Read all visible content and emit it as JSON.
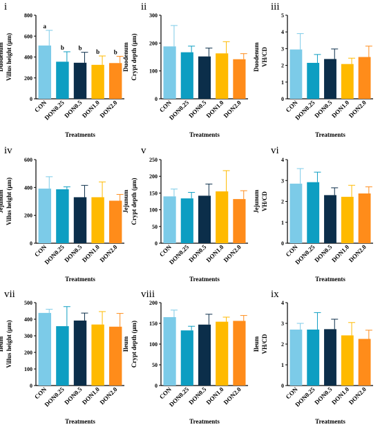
{
  "colors": [
    "#7ccbe8",
    "#0d9ec2",
    "#0b2e4a",
    "#ffba00",
    "#ff8c1a"
  ],
  "chart_data": [
    {
      "type": "bar",
      "panel": "i",
      "categories": [
        "CON",
        "DON0.25",
        "DON0.5",
        "DON1.0",
        "DON2.0"
      ],
      "values": [
        510,
        355,
        345,
        325,
        342
      ],
      "errors": [
        145,
        95,
        100,
        85,
        65
      ],
      "significance": [
        "a",
        "b",
        "b",
        "b",
        "b"
      ],
      "ylabel_lines": [
        "Duodenum",
        "Villus height (μm)"
      ],
      "xlabel": "Treatments",
      "ylim": [
        0,
        800
      ],
      "yticks": [
        "0",
        "200",
        "400",
        "600",
        "800"
      ]
    },
    {
      "type": "bar",
      "panel": "ii",
      "categories": [
        "CON",
        "DON0.25",
        "DON0.5",
        "DON1.0",
        "DON2.0"
      ],
      "values": [
        188,
        167,
        152,
        163,
        142
      ],
      "errors": [
        75,
        22,
        30,
        42,
        20
      ],
      "ylabel_lines": [
        "Duodenum",
        "Crypt depth (μm)"
      ],
      "xlabel": "Treatments",
      "ylim": [
        0,
        300
      ],
      "yticks": [
        "0",
        "100",
        "200",
        "300"
      ]
    },
    {
      "type": "bar",
      "panel": "iii",
      "categories": [
        "CON",
        "DON0.25",
        "DON0.5",
        "DON1.0",
        "DON2.0"
      ],
      "values": [
        2.95,
        2.15,
        2.38,
        2.08,
        2.5
      ],
      "errors": [
        0.95,
        0.5,
        0.6,
        0.35,
        0.65
      ],
      "ylabel_lines": [
        "Duodenum",
        "VH/CD"
      ],
      "xlabel": "Treatments",
      "ylim": [
        0,
        5
      ],
      "yticks": [
        "0",
        "1",
        "2",
        "3",
        "4",
        "5"
      ]
    },
    {
      "type": "bar",
      "panel": "iv",
      "categories": [
        "CON",
        "DON0.25",
        "DON0.5",
        "DON1.0",
        "DON2.0"
      ],
      "values": [
        392,
        387,
        330,
        330,
        305
      ],
      "errors": [
        85,
        18,
        85,
        110,
        45
      ],
      "ylabel_lines": [
        "Jejunum",
        "Villus height (μm)"
      ],
      "xlabel": "Treatments",
      "ylim": [
        0,
        600
      ],
      "yticks": [
        "0",
        "200",
        "400",
        "600"
      ]
    },
    {
      "type": "bar",
      "panel": "v",
      "categories": [
        "CON",
        "DON0.25",
        "DON0.5",
        "DON1.0",
        "DON2.0"
      ],
      "values": [
        140,
        134,
        142,
        155,
        132
      ],
      "errors": [
        22,
        18,
        35,
        62,
        25
      ],
      "ylabel_lines": [
        "Jejunum",
        "Crypt depth (μm)"
      ],
      "xlabel": "Treatments",
      "ylim": [
        0,
        250
      ],
      "yticks": [
        "0",
        "50",
        "100",
        "150",
        "200",
        "250"
      ]
    },
    {
      "type": "bar",
      "panel": "vi",
      "categories": [
        "CON",
        "DON0.25",
        "DON0.5",
        "DON1.0",
        "DON2.0"
      ],
      "values": [
        2.85,
        2.92,
        2.3,
        2.22,
        2.38
      ],
      "errors": [
        0.72,
        0.48,
        0.35,
        0.55,
        0.32
      ],
      "ylabel_lines": [
        "Jejunum",
        "VH/CD"
      ],
      "xlabel": "Treatments",
      "ylim": [
        0,
        4
      ],
      "yticks": [
        "0",
        "1",
        "2",
        "3",
        "4"
      ]
    },
    {
      "type": "bar",
      "panel": "vii",
      "categories": [
        "CON",
        "DON0.25",
        "DON0.5",
        "DON1.0",
        "DON2.0"
      ],
      "values": [
        438,
        358,
        392,
        368,
        355
      ],
      "errors": [
        22,
        118,
        45,
        78,
        80
      ],
      "ylabel_lines": [
        "Ileum",
        "Villus height (μm)"
      ],
      "xlabel": "Treatments",
      "ylim": [
        0,
        500
      ],
      "yticks": [
        "0",
        "100",
        "200",
        "300",
        "400",
        "500"
      ]
    },
    {
      "type": "bar",
      "panel": "viii",
      "categories": [
        "CON",
        "DON0.25",
        "DON0.5",
        "DON1.0",
        "DON2.0"
      ],
      "values": [
        165,
        133,
        147,
        154,
        156
      ],
      "errors": [
        17,
        10,
        25,
        11,
        13
      ],
      "ylabel_lines": [
        "Ileum",
        "Crypt depth (μm)"
      ],
      "xlabel": "Treatments",
      "ylim": [
        0,
        200
      ],
      "yticks": [
        "0",
        "50",
        "100",
        "150",
        "200"
      ]
    },
    {
      "type": "bar",
      "panel": "ix",
      "categories": [
        "CON",
        "DON0.25",
        "DON0.5",
        "DON1.0",
        "DON2.0"
      ],
      "values": [
        2.7,
        2.7,
        2.72,
        2.42,
        2.25
      ],
      "errors": [
        0.3,
        0.82,
        0.48,
        0.62,
        0.42
      ],
      "ylabel_lines": [
        "Ileum",
        "VH/CD"
      ],
      "xlabel": "Treatments",
      "ylim": [
        0,
        4
      ],
      "yticks": [
        "0",
        "1",
        "2",
        "3",
        "4"
      ]
    }
  ]
}
